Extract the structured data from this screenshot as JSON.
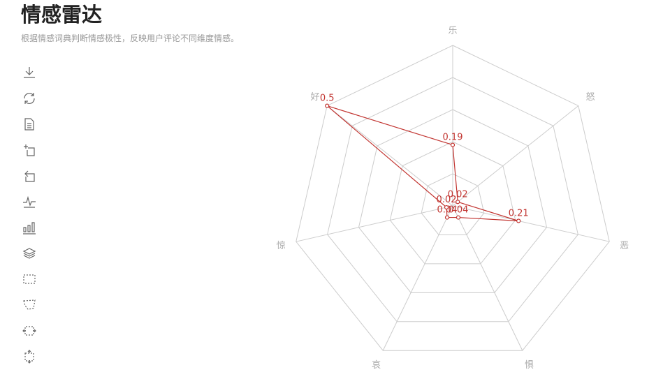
{
  "header": {
    "title": "情感雷达",
    "subtitle": "根据情感词典判断情感极性，反映用户评论不同维度情感。"
  },
  "toolbox": {
    "tools": [
      "download-icon",
      "refresh-icon",
      "data-view-icon",
      "zoom-icon",
      "zoom-reset-icon",
      "line-chart-icon",
      "bar-chart-icon",
      "stack-icon",
      "rect-select-icon",
      "lasso-select-icon",
      "keep-select-icon",
      "clear-select-icon"
    ]
  },
  "colors": {
    "series": "#c23531",
    "grid": "#cccccc",
    "label": "#aaaaaa"
  },
  "chart_data": {
    "type": "radar",
    "title": "情感雷达",
    "subtitle": "根据情感词典判断情感极性，反映用户评论不同维度情感。",
    "indicators": [
      "乐",
      "怒",
      "恶",
      "惧",
      "哀",
      "惊",
      "好"
    ],
    "max": 0.5,
    "split_number": 5,
    "series": [
      {
        "values": [
          0.19,
          0.02,
          0.21,
          0.04,
          0.04,
          0.02,
          0.5
        ]
      }
    ]
  }
}
